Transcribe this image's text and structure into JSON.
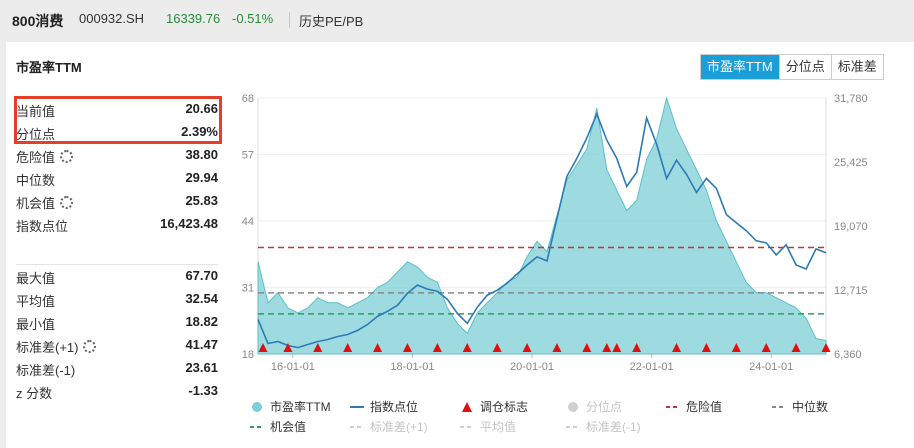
{
  "header": {
    "name": "800消费",
    "code": "000932.SH",
    "price": "16339.76",
    "change": "-0.51%",
    "history_link": "历史PE/PB"
  },
  "section_title": "市盈率TTM",
  "tabs": [
    {
      "label": "市盈率TTM",
      "active": true
    },
    {
      "label": "分位点",
      "active": false
    },
    {
      "label": "标准差",
      "active": false
    }
  ],
  "stats_top": [
    {
      "label": "当前值",
      "value": "20.66",
      "gear": false
    },
    {
      "label": "分位点",
      "value": "2.39%",
      "gear": false
    },
    {
      "label": "危险值",
      "value": "38.80",
      "gear": true
    },
    {
      "label": "中位数",
      "value": "29.94",
      "gear": false
    },
    {
      "label": "机会值",
      "value": "25.83",
      "gear": true
    },
    {
      "label": "指数点位",
      "value": "16,423.48",
      "gear": false
    }
  ],
  "stats_bottom": [
    {
      "label": "最大值",
      "value": "67.70",
      "gear": false
    },
    {
      "label": "平均值",
      "value": "32.54",
      "gear": false
    },
    {
      "label": "最小值",
      "value": "18.82",
      "gear": false
    },
    {
      "label": "标准差(+1)",
      "value": "41.47",
      "gear": true
    },
    {
      "label": "标准差(-1)",
      "value": "23.61",
      "gear": false
    },
    {
      "label": "z 分数",
      "value": "-1.33",
      "gear": false
    }
  ],
  "chart_data": {
    "type": "area",
    "x_ticks": [
      "16-01-01",
      "18-01-01",
      "20-01-01",
      "22-01-01",
      "24-01-01"
    ],
    "x_range": [
      "2015-06",
      "2024-12"
    ],
    "left_axis": {
      "ticks": [
        "68",
        "57",
        "44",
        "31",
        "18"
      ],
      "range": [
        18,
        68
      ]
    },
    "right_axis": {
      "ticks": [
        "31,780",
        "25,425",
        "19,070",
        "12,715",
        "6,360"
      ],
      "range": [
        6360,
        31780
      ]
    },
    "reference_lines": [
      {
        "name": "危险值",
        "value": 38.8,
        "color": "#c23531",
        "style": "dashed"
      },
      {
        "name": "中位数",
        "value": 29.94,
        "color": "#888888",
        "style": "dashed"
      },
      {
        "name": "机会值",
        "value": 25.83,
        "color": "#2e9e5b",
        "style": "dashed"
      }
    ],
    "series": [
      {
        "name": "市盈率TTM",
        "axis": "left",
        "color": "#7ccfd6",
        "x": [
          "2015-06",
          "2015-08",
          "2015-10",
          "2015-12",
          "2016-02",
          "2016-04",
          "2016-06",
          "2016-08",
          "2016-10",
          "2016-12",
          "2017-02",
          "2017-04",
          "2017-06",
          "2017-08",
          "2017-10",
          "2017-12",
          "2018-02",
          "2018-04",
          "2018-06",
          "2018-08",
          "2018-10",
          "2018-12",
          "2019-02",
          "2019-04",
          "2019-06",
          "2019-08",
          "2019-10",
          "2019-12",
          "2020-02",
          "2020-04",
          "2020-06",
          "2020-08",
          "2020-10",
          "2020-12",
          "2021-02",
          "2021-04",
          "2021-06",
          "2021-08",
          "2021-10",
          "2021-12",
          "2022-02",
          "2022-04",
          "2022-06",
          "2022-08",
          "2022-10",
          "2022-12",
          "2023-02",
          "2023-04",
          "2023-06",
          "2023-08",
          "2023-10",
          "2023-12",
          "2024-02",
          "2024-04",
          "2024-06",
          "2024-08",
          "2024-10",
          "2024-12"
        ],
        "values": [
          36,
          28,
          30,
          27,
          26,
          27,
          29,
          28,
          28,
          27,
          28,
          29,
          31,
          32,
          34,
          36,
          35,
          33,
          32,
          27,
          24,
          22,
          26,
          28,
          30,
          32,
          33,
          37,
          40,
          38,
          45,
          52,
          55,
          58,
          66,
          54,
          50,
          46,
          48,
          56,
          60,
          68,
          62,
          58,
          54,
          50,
          44,
          40,
          36,
          32,
          30,
          30,
          29,
          28,
          27,
          25,
          21,
          20.66
        ]
      },
      {
        "name": "指数点位",
        "axis": "right",
        "color": "#2c7bb6",
        "x": [
          "2015-06",
          "2015-08",
          "2015-10",
          "2015-12",
          "2016-02",
          "2016-04",
          "2016-06",
          "2016-08",
          "2016-10",
          "2016-12",
          "2017-02",
          "2017-04",
          "2017-06",
          "2017-08",
          "2017-10",
          "2017-12",
          "2018-02",
          "2018-04",
          "2018-06",
          "2018-08",
          "2018-10",
          "2018-12",
          "2019-02",
          "2019-04",
          "2019-06",
          "2019-08",
          "2019-10",
          "2019-12",
          "2020-02",
          "2020-04",
          "2020-06",
          "2020-08",
          "2020-10",
          "2020-12",
          "2021-02",
          "2021-04",
          "2021-06",
          "2021-08",
          "2021-10",
          "2021-12",
          "2022-02",
          "2022-04",
          "2022-06",
          "2022-08",
          "2022-10",
          "2022-12",
          "2023-02",
          "2023-04",
          "2023-06",
          "2023-08",
          "2023-10",
          "2023-12",
          "2024-02",
          "2024-04",
          "2024-06",
          "2024-08",
          "2024-10",
          "2024-12"
        ],
        "values": [
          9800,
          7400,
          7600,
          7200,
          7000,
          7300,
          7600,
          7800,
          8100,
          8300,
          8700,
          9300,
          10100,
          10600,
          11200,
          12400,
          13200,
          12800,
          12600,
          11800,
          10400,
          9400,
          11000,
          12200,
          12700,
          13400,
          14300,
          15200,
          16000,
          15600,
          19800,
          24000,
          25800,
          27800,
          30200,
          27600,
          25800,
          23000,
          24400,
          29800,
          27200,
          23800,
          25600,
          24200,
          22400,
          23800,
          22800,
          20200,
          19400,
          18600,
          17600,
          17400,
          16200,
          17200,
          15200,
          14800,
          16800,
          16423
        ]
      }
    ],
    "rebalance_markers": [
      "2015-07",
      "2015-12",
      "2016-06",
      "2016-12",
      "2017-06",
      "2017-12",
      "2018-06",
      "2018-12",
      "2019-06",
      "2019-12",
      "2020-06",
      "2020-12",
      "2021-04",
      "2021-06",
      "2021-10",
      "2022-06",
      "2022-12",
      "2023-06",
      "2023-12",
      "2024-06",
      "2024-12"
    ],
    "legend": [
      {
        "label": "市盈率TTM",
        "kind": "dot",
        "color": "#7ccfd6",
        "active": true
      },
      {
        "label": "指数点位",
        "kind": "line",
        "color": "#2c7bb6",
        "active": true
      },
      {
        "label": "调仓标志",
        "kind": "triangle",
        "color": "#e30f0f",
        "active": true
      },
      {
        "label": "分位点",
        "kind": "dot",
        "color": "#cfcfcf",
        "active": false
      },
      {
        "label": "危险值",
        "kind": "dash",
        "color": "#c23531",
        "active": true
      },
      {
        "label": "中位数",
        "kind": "dash",
        "color": "#888888",
        "active": true
      },
      {
        "label": "机会值",
        "kind": "dash",
        "color": "#2e9e5b",
        "active": true
      },
      {
        "label": "标准差(+1)",
        "kind": "dash",
        "color": "#cfcfcf",
        "active": false
      },
      {
        "label": "平均值",
        "kind": "dash",
        "color": "#cfcfcf",
        "active": false
      },
      {
        "label": "标准差(-1)",
        "kind": "dash",
        "color": "#cfcfcf",
        "active": false
      }
    ]
  }
}
